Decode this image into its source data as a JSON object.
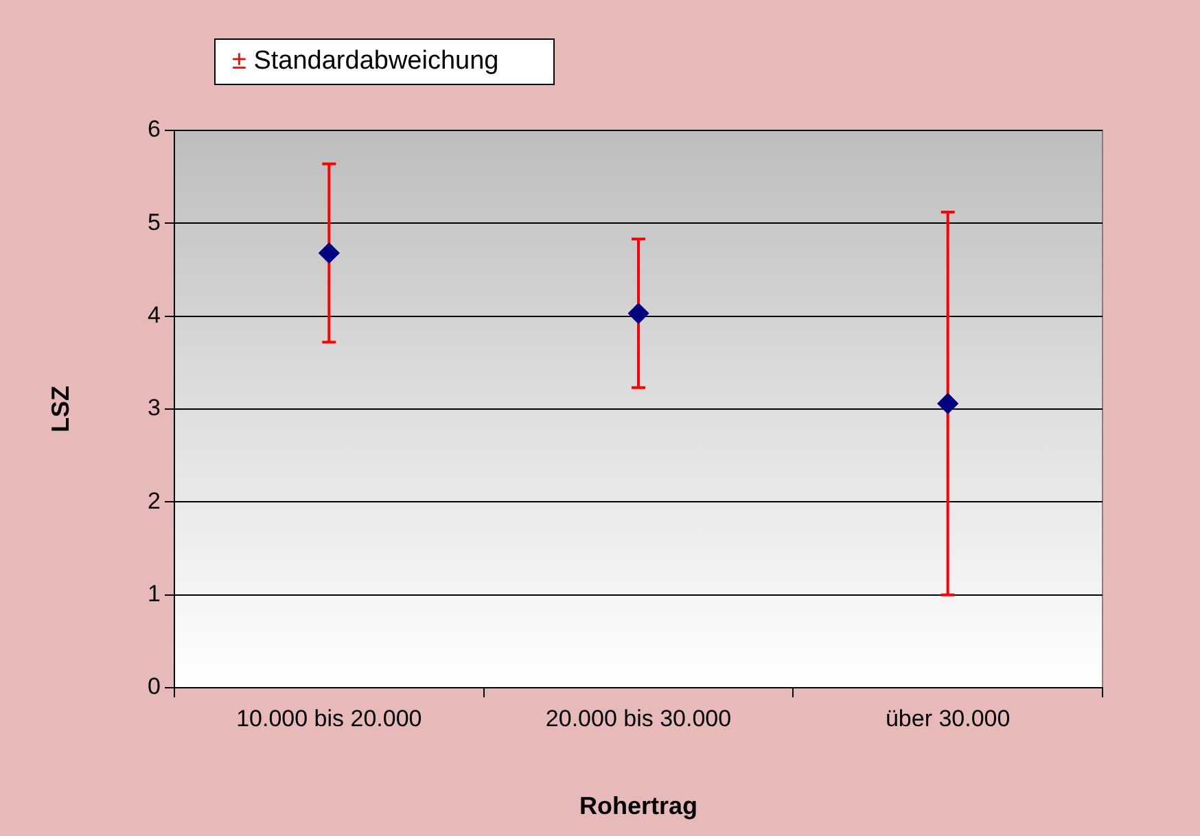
{
  "chart_data": {
    "type": "scatter",
    "xlabel": "Rohertrag",
    "ylabel": "LSZ",
    "categories": [
      "10.000 bis 20.000",
      "20.000 bis 30.000",
      "über 30.000"
    ],
    "series": [
      {
        "color": "#000080",
        "values": [
          4.68,
          4.03,
          3.06
        ],
        "errors": [
          0.96,
          0.8,
          2.06
        ]
      }
    ],
    "ylim": [
      0,
      6
    ],
    "yticks": [
      0,
      1,
      2,
      3,
      4,
      5,
      6
    ],
    "grid": "y",
    "marker": "diamond",
    "legend": false,
    "annotations": [
      "± Standardabweichung"
    ]
  }
}
